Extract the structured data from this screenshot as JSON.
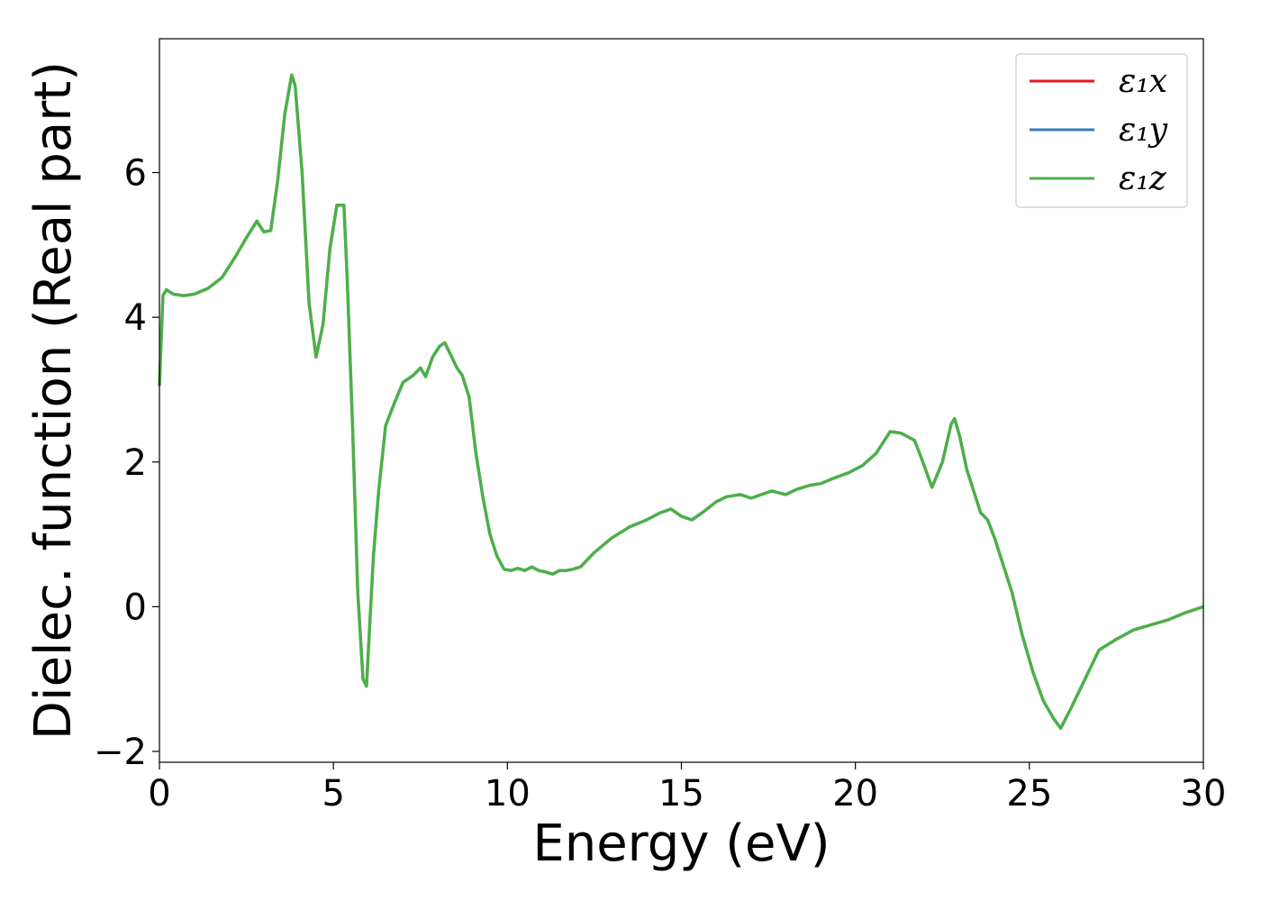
{
  "chart_data": {
    "type": "line",
    "title": "",
    "xlabel": "Energy (eV)",
    "ylabel": "Dielec. function (Real part)",
    "xlim": [
      0,
      30
    ],
    "ylim": [
      -2.15,
      7.85
    ],
    "xticks": [
      0,
      5,
      10,
      15,
      20,
      25,
      30
    ],
    "xtick_labels": [
      "0",
      "5",
      "10",
      "15",
      "20",
      "25",
      "30"
    ],
    "yticks": [
      -2,
      0,
      2,
      4,
      6
    ],
    "ytick_labels": [
      "−2",
      "0",
      "2",
      "4",
      "6"
    ],
    "grid": false,
    "legend_position": "top-right",
    "x": [
      0,
      0.1,
      0.2,
      0.4,
      0.7,
      1.0,
      1.4,
      1.8,
      2.2,
      2.5,
      2.8,
      3.0,
      3.2,
      3.4,
      3.6,
      3.8,
      3.9,
      4.1,
      4.3,
      4.5,
      4.7,
      4.9,
      5.1,
      5.3,
      5.4,
      5.55,
      5.7,
      5.85,
      5.95,
      6.05,
      6.15,
      6.3,
      6.5,
      6.7,
      7.0,
      7.3,
      7.5,
      7.65,
      7.85,
      8.05,
      8.2,
      8.4,
      8.55,
      8.7,
      8.9,
      9.1,
      9.3,
      9.5,
      9.7,
      9.9,
      10.1,
      10.3,
      10.5,
      10.7,
      10.9,
      11.1,
      11.3,
      11.5,
      11.7,
      11.9,
      12.1,
      12.5,
      13.0,
      13.5,
      14.0,
      14.4,
      14.7,
      15.0,
      15.3,
      15.6,
      16.0,
      16.3,
      16.7,
      17.0,
      17.3,
      17.6,
      18.0,
      18.3,
      18.7,
      19.0,
      19.4,
      19.8,
      20.2,
      20.6,
      21.0,
      21.3,
      21.7,
      21.9,
      22.2,
      22.5,
      22.75,
      22.85,
      23.0,
      23.2,
      23.4,
      23.6,
      23.8,
      24.0,
      24.2,
      24.5,
      24.8,
      25.1,
      25.4,
      25.7,
      25.9,
      26.2,
      26.6,
      27.0,
      27.5,
      28.0,
      28.5,
      29.0,
      29.5,
      30.0
    ],
    "series": [
      {
        "name": "ε₁x",
        "color": "#e41a1c",
        "width": 3
      },
      {
        "name": "ε₁y",
        "color": "#377eb8",
        "width": 3
      },
      {
        "name": "ε₁z",
        "color": "#4daf4a",
        "width": 3.5
      }
    ],
    "values": [
      3.05,
      4.3,
      4.38,
      4.32,
      4.3,
      4.32,
      4.4,
      4.55,
      4.85,
      5.1,
      5.33,
      5.18,
      5.2,
      5.9,
      6.8,
      7.35,
      7.2,
      6.0,
      4.2,
      3.45,
      3.9,
      4.95,
      5.55,
      5.55,
      4.5,
      2.5,
      0.2,
      -1.0,
      -1.1,
      -0.2,
      0.7,
      1.6,
      2.5,
      2.75,
      3.1,
      3.2,
      3.3,
      3.18,
      3.45,
      3.6,
      3.65,
      3.45,
      3.3,
      3.2,
      2.9,
      2.1,
      1.5,
      1.0,
      0.7,
      0.52,
      0.5,
      0.53,
      0.5,
      0.55,
      0.5,
      0.48,
      0.45,
      0.5,
      0.5,
      0.52,
      0.55,
      0.75,
      0.95,
      1.1,
      1.2,
      1.3,
      1.35,
      1.25,
      1.2,
      1.3,
      1.45,
      1.52,
      1.55,
      1.5,
      1.55,
      1.6,
      1.55,
      1.62,
      1.68,
      1.7,
      1.78,
      1.85,
      1.95,
      2.12,
      2.42,
      2.4,
      2.3,
      2.05,
      1.65,
      2.0,
      2.52,
      2.6,
      2.35,
      1.9,
      1.6,
      1.3,
      1.2,
      0.95,
      0.65,
      0.2,
      -0.4,
      -0.9,
      -1.3,
      -1.55,
      -1.68,
      -1.4,
      -1.0,
      -0.6,
      -0.45,
      -0.32,
      -0.25,
      -0.18,
      -0.08,
      0.0
    ]
  }
}
